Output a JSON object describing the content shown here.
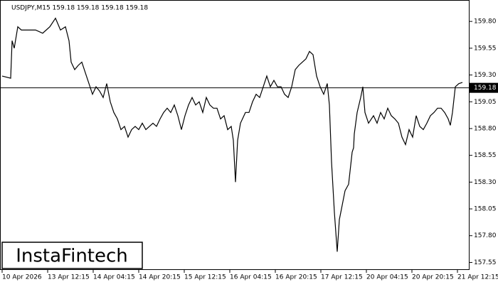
{
  "chart_data": {
    "type": "line",
    "title": "USDJPY,M15  159.18 159.18 159.18 159.18",
    "watermark": "InstaFintech",
    "current_price": 159.18,
    "xlim": [
      0,
      660
    ],
    "ylim": [
      157.48,
      160.0
    ],
    "yticks": [
      {
        "value": 157.55,
        "label": "157.55"
      },
      {
        "value": 157.8,
        "label": "157.80"
      },
      158.05,
      {
        "value": 158.3,
        "label": "158.30"
      },
      158.55,
      {
        "value": 158.8,
        "label": "158.80"
      },
      159.05,
      {
        "value": 159.3,
        "label": "159.30"
      },
      159.55,
      {
        "value": 159.8,
        "label": "159.80"
      }
    ],
    "xticks": [
      {
        "value": 3,
        "label": "10 Apr 2026"
      },
      {
        "value": 67,
        "label": "13 Apr 12:15"
      },
      {
        "value": 131,
        "label": "14 Apr 04:15"
      },
      {
        "value": 195,
        "label": "14 Apr 20:15"
      },
      {
        "value": 259,
        "label": "15 Apr 12:15"
      },
      {
        "value": 323,
        "label": "16 Apr 04:15"
      },
      {
        "value": 387,
        "label": "16 Apr 20:15"
      },
      {
        "value": 451,
        "label": "17 Apr 12:15"
      },
      {
        "value": 515,
        "label": "20 Apr 04:15"
      },
      {
        "value": 579,
        "label": "20 Apr 20:15"
      },
      {
        "value": 643,
        "label": "21 Apr 12:15"
      }
    ],
    "series": [
      {
        "color": "#000000",
        "x": [
          3,
          15,
          17,
          20,
          25,
          30,
          40,
          50,
          60,
          70,
          78,
          85,
          92,
          97,
          100,
          105,
          110,
          115,
          120,
          125,
          130,
          135,
          140,
          145,
          150,
          155,
          160,
          165,
          170,
          175,
          180,
          185,
          190,
          195,
          200,
          205,
          210,
          215,
          220,
          225,
          230,
          235,
          240,
          245,
          250,
          255,
          260,
          265,
          270,
          275,
          280,
          285,
          290,
          295,
          300,
          305,
          310,
          315,
          320,
          325,
          328,
          331,
          334,
          338,
          345,
          350,
          355,
          360,
          365,
          370,
          375,
          380,
          385,
          390,
          395,
          400,
          405,
          410,
          415,
          420,
          425,
          430,
          435,
          440,
          445,
          450,
          455,
          460,
          463,
          466,
          470,
          474,
          477,
          480,
          485,
          490,
          495,
          497,
          498,
          502,
          507,
          510,
          513,
          518,
          525,
          530,
          535,
          540,
          545,
          550,
          555,
          560,
          565,
          570,
          575,
          580,
          585,
          590,
          595,
          600,
          605,
          610,
          615,
          620,
          625,
          630,
          633,
          636,
          640,
          645,
          650
        ],
        "values": [
          159.29,
          159.27,
          159.62,
          159.55,
          159.75,
          159.72,
          159.72,
          159.72,
          159.69,
          159.75,
          159.83,
          159.72,
          159.75,
          159.62,
          159.42,
          159.35,
          159.39,
          159.42,
          159.32,
          159.22,
          159.12,
          159.19,
          159.15,
          159.09,
          159.22,
          159.05,
          158.95,
          158.89,
          158.79,
          158.82,
          158.72,
          158.79,
          158.82,
          158.79,
          158.85,
          158.79,
          158.82,
          158.85,
          158.82,
          158.89,
          158.95,
          158.99,
          158.95,
          159.02,
          158.92,
          158.79,
          158.92,
          159.02,
          159.09,
          159.02,
          159.05,
          158.95,
          159.09,
          159.02,
          158.99,
          158.99,
          158.89,
          158.92,
          158.79,
          158.82,
          158.69,
          158.3,
          158.69,
          158.85,
          158.95,
          158.95,
          159.05,
          159.12,
          159.09,
          159.19,
          159.29,
          159.19,
          159.25,
          159.19,
          159.19,
          159.12,
          159.09,
          159.19,
          159.35,
          159.39,
          159.42,
          159.45,
          159.52,
          159.49,
          159.29,
          159.19,
          159.12,
          159.22,
          159.02,
          158.49,
          158.02,
          157.65,
          157.95,
          158.05,
          158.22,
          158.28,
          158.58,
          158.62,
          158.75,
          158.95,
          159.09,
          159.19,
          158.95,
          158.85,
          158.92,
          158.85,
          158.95,
          158.89,
          158.99,
          158.92,
          158.89,
          158.85,
          158.72,
          158.65,
          158.79,
          158.72,
          158.92,
          158.82,
          158.79,
          158.85,
          158.92,
          158.95,
          158.99,
          158.99,
          158.95,
          158.89,
          158.83,
          158.95,
          159.19,
          159.22,
          159.23
        ]
      }
    ]
  }
}
